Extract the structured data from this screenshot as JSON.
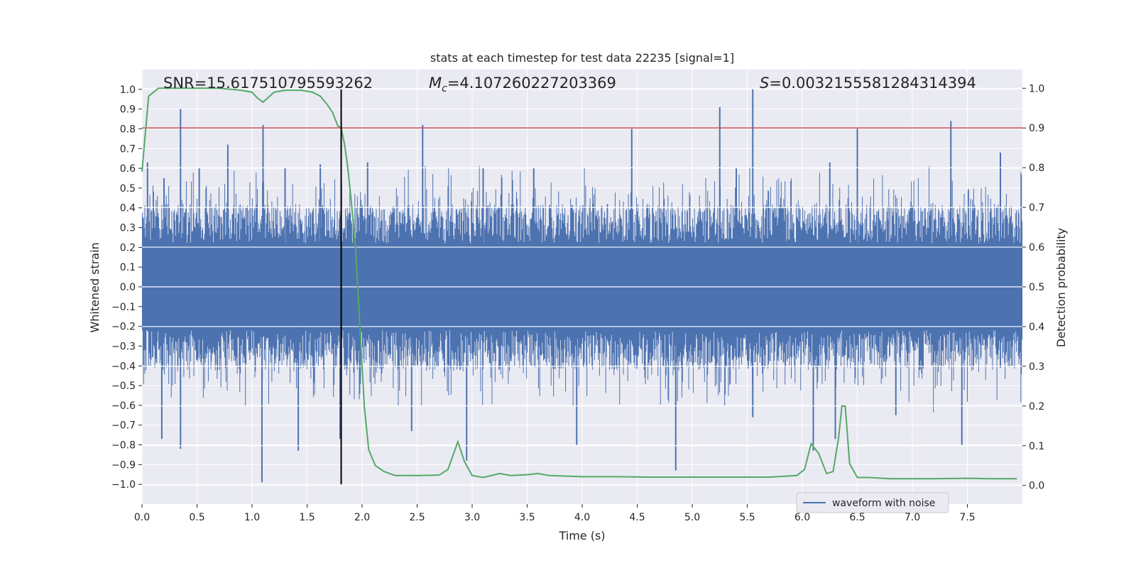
{
  "chart_data": {
    "type": "line",
    "title": "stats at each timestep for test data 22235 [signal=1]",
    "xlabel": "Time (s)",
    "ylabel": "Whitened strain",
    "y2label": "Detection probability",
    "xlim": [
      0.0,
      8.0
    ],
    "ylim": [
      -1.1,
      1.1
    ],
    "y2lim": [
      -0.047,
      1.047
    ],
    "xticks": [
      0.0,
      0.5,
      1.0,
      1.5,
      2.0,
      2.5,
      3.0,
      3.5,
      4.0,
      4.5,
      5.0,
      5.5,
      6.0,
      6.5,
      7.0,
      7.5
    ],
    "xtick_labels": [
      "0.0",
      "0.5",
      "1.0",
      "1.5",
      "2.0",
      "2.5",
      "3.0",
      "3.5",
      "4.0",
      "4.5",
      "5.0",
      "5.5",
      "6.0",
      "6.5",
      "7.0",
      "7.5"
    ],
    "yticks": [
      1.0,
      0.9,
      0.8,
      0.7,
      0.6,
      0.5,
      0.4,
      0.3,
      0.2,
      0.1,
      0.0,
      -0.1,
      -0.2,
      -0.3,
      -0.4,
      -0.5,
      -0.6,
      -0.7,
      -0.8,
      -0.9,
      -1.0
    ],
    "ytick_labels": [
      "1.0",
      "0.9",
      "0.8",
      "0.7",
      "0.6",
      "0.5",
      "0.4",
      "0.3",
      "0.2",
      "0.1",
      "0.0",
      "−0.1",
      "−0.2",
      "−0.3",
      "−0.4",
      "−0.5",
      "−0.6",
      "−0.7",
      "−0.8",
      "−0.9",
      "−1.0"
    ],
    "y2ticks": [
      1.0,
      0.9,
      0.8,
      0.7,
      0.6,
      0.5,
      0.4,
      0.3,
      0.2,
      0.1,
      0.0
    ],
    "y2tick_labels": [
      "1.0",
      "0.9",
      "0.8",
      "0.7",
      "0.6",
      "0.5",
      "0.4",
      "0.3",
      "0.2",
      "0.1",
      "0.0"
    ],
    "annotations": {
      "snr": "SNR=15.617510795593262",
      "mc_symbol": "M",
      "mc_sub": "c",
      "mc_value": "=4.107260227203369",
      "s_symbol": "S",
      "s_value": "=0.0032155581284314394"
    },
    "legend": {
      "label": "waveform with noise",
      "location": "lower-right"
    },
    "threshold": {
      "value": 0.9,
      "axis": "right",
      "color": "#c44e52"
    },
    "marker_time": 1.81,
    "waveform": {
      "name": "waveform with noise",
      "color": "#4c72b0",
      "core_band": [
        -0.2,
        0.2
      ],
      "spikes_up": [
        [
          0.05,
          0.63
        ],
        [
          0.2,
          0.55
        ],
        [
          0.35,
          0.9
        ],
        [
          0.52,
          0.6
        ],
        [
          0.78,
          0.72
        ],
        [
          1.1,
          0.82
        ],
        [
          1.3,
          0.6
        ],
        [
          1.62,
          0.62
        ],
        [
          2.05,
          0.63
        ],
        [
          2.55,
          0.82
        ],
        [
          3.1,
          0.6
        ],
        [
          3.56,
          0.6
        ],
        [
          4.45,
          0.8
        ],
        [
          5.25,
          0.91
        ],
        [
          5.55,
          1.0
        ],
        [
          5.4,
          0.6
        ],
        [
          6.25,
          0.63
        ],
        [
          6.5,
          0.8
        ],
        [
          7.35,
          0.84
        ],
        [
          7.8,
          0.68
        ]
      ],
      "spikes_down": [
        [
          0.18,
          -0.77
        ],
        [
          0.35,
          -0.82
        ],
        [
          1.09,
          -0.99
        ],
        [
          1.42,
          -0.83
        ],
        [
          1.8,
          -0.77
        ],
        [
          2.45,
          -0.73
        ],
        [
          2.95,
          -0.88
        ],
        [
          3.95,
          -0.8
        ],
        [
          4.85,
          -0.93
        ],
        [
          5.55,
          -0.66
        ],
        [
          6.1,
          -0.83
        ],
        [
          6.3,
          -0.77
        ],
        [
          6.85,
          -0.65
        ],
        [
          7.45,
          -0.8
        ]
      ]
    },
    "probability": {
      "name": "detection probability",
      "color": "#55a868",
      "x": [
        0.0,
        0.06,
        0.15,
        0.3,
        0.5,
        0.7,
        0.9,
        1.0,
        1.05,
        1.1,
        1.2,
        1.3,
        1.45,
        1.55,
        1.62,
        1.68,
        1.73,
        1.78,
        1.81,
        1.84,
        1.87,
        1.9,
        1.94,
        1.98,
        2.02,
        2.06,
        2.12,
        2.2,
        2.3,
        2.5,
        2.7,
        2.78,
        2.87,
        2.93,
        3.0,
        3.1,
        3.25,
        3.35,
        3.5,
        3.6,
        3.7,
        4.0,
        4.3,
        4.6,
        5.0,
        5.4,
        5.7,
        5.95,
        6.02,
        6.08,
        6.15,
        6.22,
        6.28,
        6.33,
        6.36,
        6.39,
        6.43,
        6.5,
        6.6,
        6.8,
        7.2,
        7.5,
        7.7,
        7.95
      ],
      "y": [
        0.79,
        0.98,
        1.0,
        1.0,
        1.0,
        1.0,
        0.995,
        0.99,
        0.975,
        0.965,
        0.99,
        0.995,
        0.995,
        0.99,
        0.98,
        0.96,
        0.94,
        0.905,
        0.9,
        0.86,
        0.8,
        0.72,
        0.6,
        0.4,
        0.2,
        0.09,
        0.05,
        0.035,
        0.025,
        0.025,
        0.026,
        0.04,
        0.11,
        0.06,
        0.025,
        0.02,
        0.03,
        0.025,
        0.027,
        0.03,
        0.025,
        0.022,
        0.022,
        0.021,
        0.021,
        0.021,
        0.021,
        0.025,
        0.04,
        0.105,
        0.08,
        0.03,
        0.035,
        0.12,
        0.2,
        0.2,
        0.055,
        0.02,
        0.02,
        0.017,
        0.017,
        0.018,
        0.017,
        0.017
      ]
    }
  }
}
